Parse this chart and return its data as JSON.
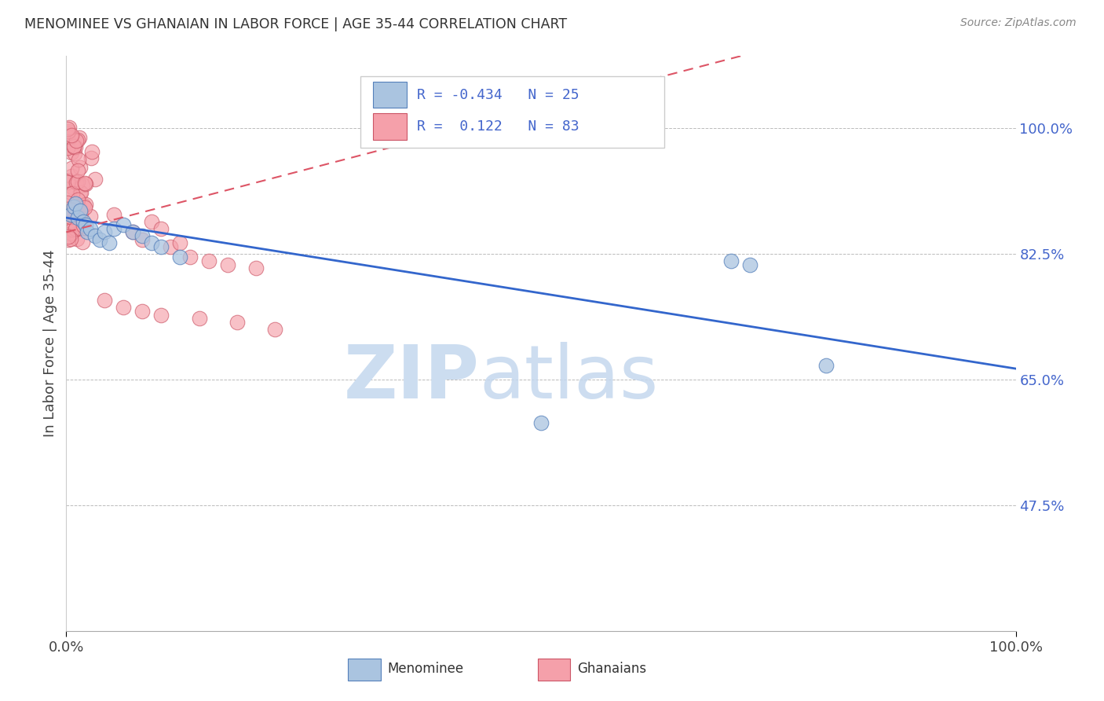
{
  "title": "MENOMINEE VS GHANAIAN IN LABOR FORCE | AGE 35-44 CORRELATION CHART",
  "source": "Source: ZipAtlas.com",
  "ylabel": "In Labor Force | Age 35-44",
  "xlim": [
    0.0,
    1.0
  ],
  "ylim": [
    0.3,
    1.1
  ],
  "yticks": [
    0.475,
    0.65,
    0.825,
    1.0
  ],
  "ytick_labels": [
    "47.5%",
    "65.0%",
    "82.5%",
    "100.0%"
  ],
  "xtick_labels": [
    "0.0%",
    "100.0%"
  ],
  "menominee_color": "#aac4e0",
  "ghanaian_color": "#f5a0aa",
  "menominee_edge": "#5580bb",
  "ghanaian_edge": "#cc5566",
  "trend_blue": "#3366cc",
  "trend_pink": "#dd5566",
  "R_menominee": -0.434,
  "N_menominee": 25,
  "R_ghanaian": 0.122,
  "N_ghanaian": 83,
  "background_color": "#ffffff",
  "grid_color": "#bbbbbb",
  "watermark_color": "#ccddf0",
  "tick_color": "#4466cc",
  "source_color": "#888888",
  "title_color": "#333333"
}
